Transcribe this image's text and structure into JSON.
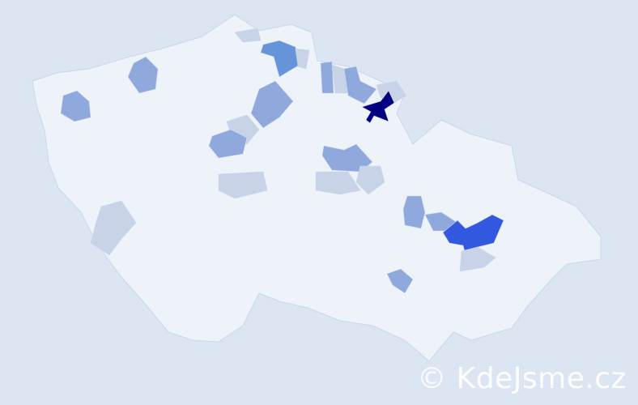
{
  "map": {
    "colors": {
      "background": "#dce5f2",
      "base": "#eef2f9",
      "border": "#cdd6ee",
      "level1": "#c8d3e8",
      "level2": "#8fa9dd",
      "level3": "#6595d8",
      "level4": "#3358e0",
      "level5": "#000080"
    }
  },
  "watermark": "© KdeJsme.cz"
}
